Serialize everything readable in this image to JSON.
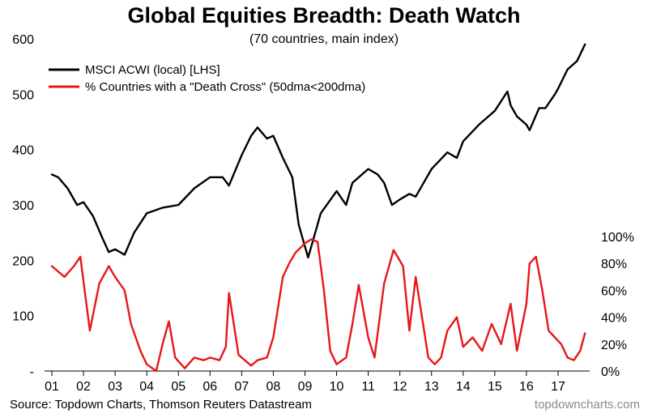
{
  "chart_data": {
    "type": "line",
    "title": "Global Equities Breadth: Death Watch",
    "subtitle": "(70 countries, main index)",
    "x_tick_labels": [
      "01",
      "02",
      "03",
      "04",
      "05",
      "06",
      "07",
      "08",
      "09",
      "10",
      "11",
      "12",
      "13",
      "14",
      "15",
      "16",
      "17"
    ],
    "y_left": {
      "range": [
        0,
        600
      ],
      "tick_labels": [
        "-",
        "100",
        "200",
        "300",
        "400",
        "500",
        "600"
      ]
    },
    "y_right": {
      "range": [
        0,
        100
      ],
      "unit": "%",
      "tick_labels": [
        "0%",
        "20%",
        "40%",
        "60%",
        "80%",
        "100%"
      ]
    },
    "legend_placement": "top-left",
    "series": [
      {
        "name": "MSCI ACWI (local) [LHS]",
        "axis": "left",
        "color": "#000000",
        "x": [
          2001.0,
          2001.2,
          2001.5,
          2001.8,
          2002.0,
          2002.3,
          2002.6,
          2002.8,
          2003.0,
          2003.3,
          2003.6,
          2004.0,
          2004.5,
          2005.0,
          2005.5,
          2006.0,
          2006.4,
          2006.6,
          2007.0,
          2007.3,
          2007.5,
          2007.8,
          2008.0,
          2008.3,
          2008.6,
          2008.8,
          2008.95,
          2009.1,
          2009.2,
          2009.5,
          2010.0,
          2010.3,
          2010.5,
          2011.0,
          2011.3,
          2011.5,
          2011.75,
          2012.0,
          2012.3,
          2012.5,
          2013.0,
          2013.5,
          2013.8,
          2014.0,
          2014.5,
          2015.0,
          2015.4,
          2015.5,
          2015.7,
          2016.0,
          2016.1,
          2016.4,
          2016.6,
          2016.9,
          2017.0,
          2017.3,
          2017.6,
          2017.85
        ],
        "values": [
          355,
          350,
          330,
          300,
          305,
          280,
          240,
          215,
          220,
          210,
          250,
          285,
          295,
          300,
          330,
          350,
          350,
          335,
          390,
          425,
          440,
          420,
          425,
          385,
          350,
          265,
          235,
          205,
          225,
          285,
          325,
          300,
          340,
          365,
          355,
          340,
          300,
          310,
          320,
          315,
          365,
          395,
          385,
          415,
          445,
          470,
          505,
          480,
          460,
          445,
          435,
          475,
          475,
          500,
          510,
          545,
          560,
          590
        ]
      },
      {
        "name": "% Countries with a \"Death Cross\" (50dma<200dma)",
        "axis": "right",
        "color": "#e8161a",
        "x": [
          2001.0,
          2001.4,
          2001.7,
          2001.9,
          2002.2,
          2002.5,
          2002.8,
          2003.0,
          2003.3,
          2003.5,
          2003.8,
          2004.0,
          2004.3,
          2004.5,
          2004.7,
          2004.9,
          2005.2,
          2005.5,
          2005.8,
          2006.0,
          2006.3,
          2006.5,
          2006.6,
          2006.9,
          2007.3,
          2007.5,
          2007.8,
          2008.0,
          2008.3,
          2008.5,
          2008.7,
          2009.0,
          2009.2,
          2009.4,
          2009.6,
          2009.8,
          2010.0,
          2010.3,
          2010.5,
          2010.7,
          2011.0,
          2011.2,
          2011.5,
          2011.8,
          2012.1,
          2012.3,
          2012.5,
          2012.7,
          2012.9,
          2013.1,
          2013.3,
          2013.5,
          2013.8,
          2014.0,
          2014.3,
          2014.6,
          2014.9,
          2015.2,
          2015.5,
          2015.7,
          2016.0,
          2016.1,
          2016.3,
          2016.5,
          2016.7,
          2016.9,
          2017.1,
          2017.3,
          2017.5,
          2017.7,
          2017.85
        ],
        "values": [
          78,
          70,
          78,
          85,
          30,
          65,
          78,
          70,
          60,
          35,
          15,
          5,
          0,
          20,
          37,
          10,
          2,
          10,
          8,
          10,
          8,
          18,
          58,
          12,
          4,
          8,
          10,
          25,
          70,
          80,
          88,
          95,
          98,
          96,
          60,
          15,
          5,
          10,
          35,
          64,
          25,
          10,
          65,
          90,
          78,
          30,
          70,
          40,
          10,
          5,
          10,
          30,
          40,
          18,
          25,
          15,
          35,
          20,
          50,
          15,
          50,
          80,
          85,
          60,
          30,
          25,
          20,
          10,
          8,
          15,
          28
        ]
      }
    ]
  },
  "legend": [
    {
      "label": "MSCI ACWI (local) [LHS]",
      "color": "#000000"
    },
    {
      "label": "% Countries with a \"Death Cross\" (50dma<200dma)",
      "color": "#e8161a"
    }
  ],
  "footer": {
    "source": "Source: Topdown Charts, Thomson Reuters Datastream",
    "brand": "topdowncharts.com"
  }
}
